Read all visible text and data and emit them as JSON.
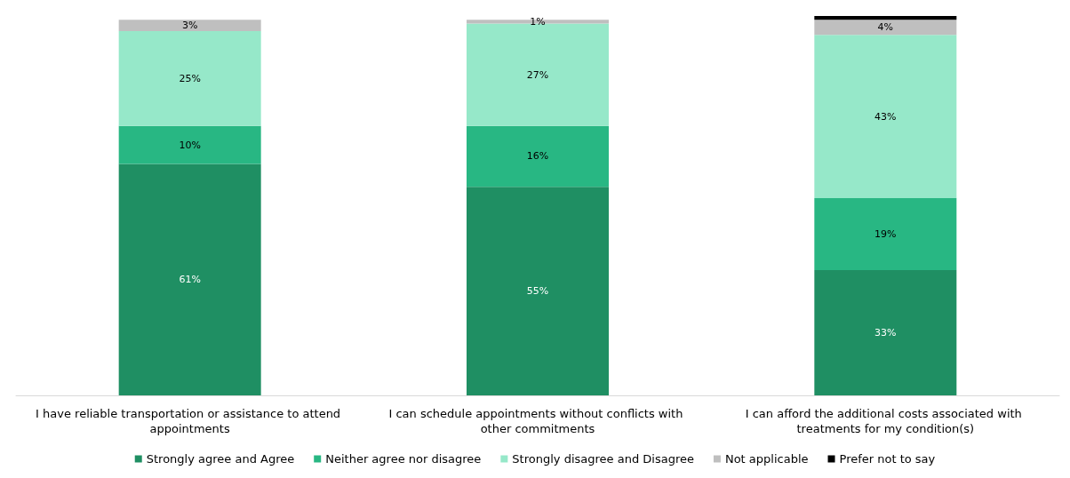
{
  "chart_data": {
    "type": "bar",
    "stacked": true,
    "legend": "bottom",
    "categories": [
      "I have reliable transportation or assistance to attend appointments",
      "I can schedule appointments without conflicts with other commitments",
      "I can afford the additional costs associated with treatments for my condition(s)"
    ],
    "series": [
      {
        "name": "Strongly agree and Agree",
        "color": "#1f8f63",
        "values": [
          61,
          55,
          33
        ],
        "value_labels": [
          "61%",
          "55%",
          "33%"
        ]
      },
      {
        "name": "Neither agree nor disagree",
        "color": "#28b783",
        "values": [
          10,
          16,
          19
        ],
        "value_labels": [
          "10%",
          "16%",
          "19%"
        ]
      },
      {
        "name": "Strongly disagree and Disagree",
        "color": "#96e8c9",
        "values": [
          25,
          27,
          43
        ],
        "value_labels": [
          "25%",
          "27%",
          "43%"
        ]
      },
      {
        "name": "Not applicable",
        "color": "#bfbfbf",
        "values": [
          3,
          1,
          4
        ],
        "value_labels": [
          "3%",
          "1%",
          "4%"
        ]
      },
      {
        "name": "Prefer not to say",
        "color": "#000000",
        "values": [
          null,
          null,
          1
        ],
        "value_labels": [
          null,
          null,
          null
        ]
      }
    ]
  }
}
